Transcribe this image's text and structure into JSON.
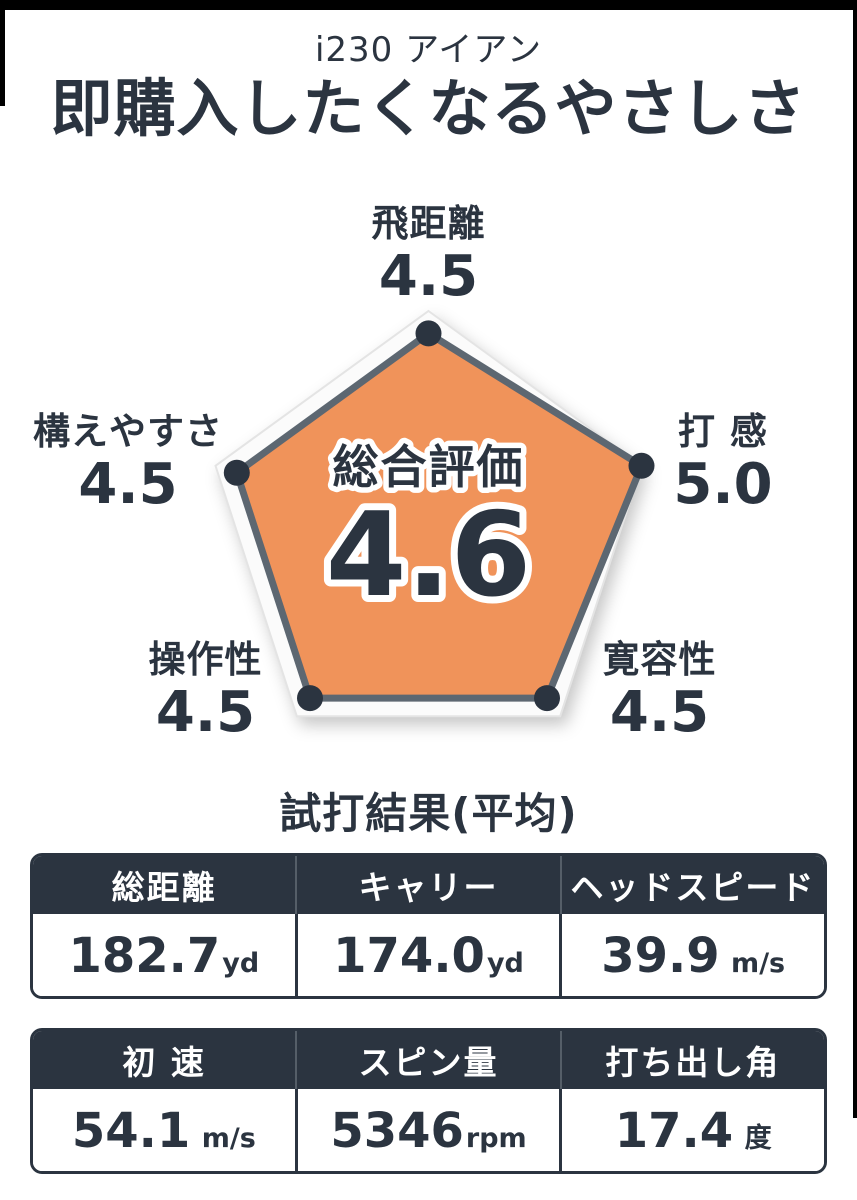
{
  "page": {
    "model": "i230 アイアン",
    "headline": "即購入したくなるやさしさ"
  },
  "colors": {
    "ink": "#2b3440",
    "accent_orange": "#f0935a",
    "polygon_stroke": "#5d6771",
    "grid_line": "#d97b40",
    "dot": "#2b3440"
  },
  "chart_data": {
    "type": "radar",
    "title": "総合評価",
    "overall": "4.6",
    "max": 5,
    "grid_levels": [
      0.2,
      0.4,
      0.6,
      0.8
    ],
    "axes": [
      {
        "label": "飛距離",
        "value": 4.5,
        "display": "4.5"
      },
      {
        "label": "打 感",
        "value": 5.0,
        "display": "5.0"
      },
      {
        "label": "寛容性",
        "value": 4.5,
        "display": "4.5"
      },
      {
        "label": "操作性",
        "value": 4.5,
        "display": "4.5"
      },
      {
        "label": "構えやすさ",
        "value": 4.5,
        "display": "4.5"
      }
    ]
  },
  "results": {
    "heading": "試打結果(平均)",
    "tables": [
      {
        "columns": [
          {
            "header": "総距離",
            "value": "182.7",
            "unit": "yd"
          },
          {
            "header": "キャリー",
            "value": "174.0",
            "unit": "yd"
          },
          {
            "header": "ヘッドスピード",
            "value": "39.9",
            "unit": " m/s"
          }
        ]
      },
      {
        "columns": [
          {
            "header": "初 速",
            "value": "54.1",
            "unit": " m/s"
          },
          {
            "header": "スピン量",
            "value": "5346",
            "unit": "rpm"
          },
          {
            "header": "打ち出し角",
            "value": "17.4",
            "unit": " 度"
          }
        ]
      }
    ]
  }
}
